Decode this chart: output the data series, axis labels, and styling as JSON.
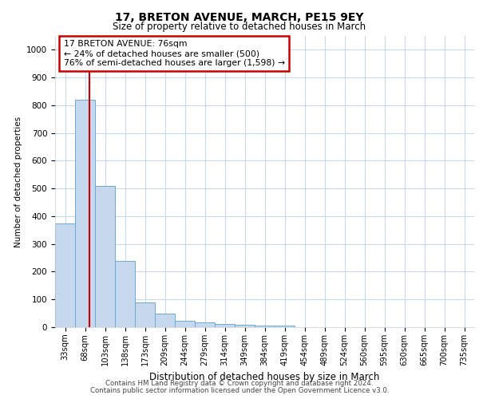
{
  "title1": "17, BRETON AVENUE, MARCH, PE15 9EY",
  "title2": "Size of property relative to detached houses in March",
  "xlabel": "Distribution of detached houses by size in March",
  "ylabel": "Number of detached properties",
  "categories": [
    "33sqm",
    "68sqm",
    "103sqm",
    "138sqm",
    "173sqm",
    "209sqm",
    "244sqm",
    "279sqm",
    "314sqm",
    "349sqm",
    "384sqm",
    "419sqm",
    "454sqm",
    "489sqm",
    "524sqm",
    "560sqm",
    "595sqm",
    "630sqm",
    "665sqm",
    "700sqm",
    "735sqm"
  ],
  "values": [
    375,
    820,
    510,
    238,
    90,
    50,
    22,
    16,
    12,
    8,
    5,
    5,
    0,
    0,
    0,
    0,
    0,
    0,
    0,
    0,
    0
  ],
  "bar_color": "#c5d8ee",
  "bar_edge_color": "#6aaad4",
  "property_line_x": 1.22,
  "annotation_line1": "17 BRETON AVENUE: 76sqm",
  "annotation_line2": "← 24% of detached houses are smaller (500)",
  "annotation_line3": "76% of semi-detached houses are larger (1,598) →",
  "annotation_box_color": "#cc0000",
  "ylim": [
    0,
    1050
  ],
  "footnote1": "Contains HM Land Registry data © Crown copyright and database right 2024.",
  "footnote2": "Contains public sector information licensed under the Open Government Licence v3.0.",
  "background_color": "#ffffff",
  "grid_color": "#c8d8e8"
}
